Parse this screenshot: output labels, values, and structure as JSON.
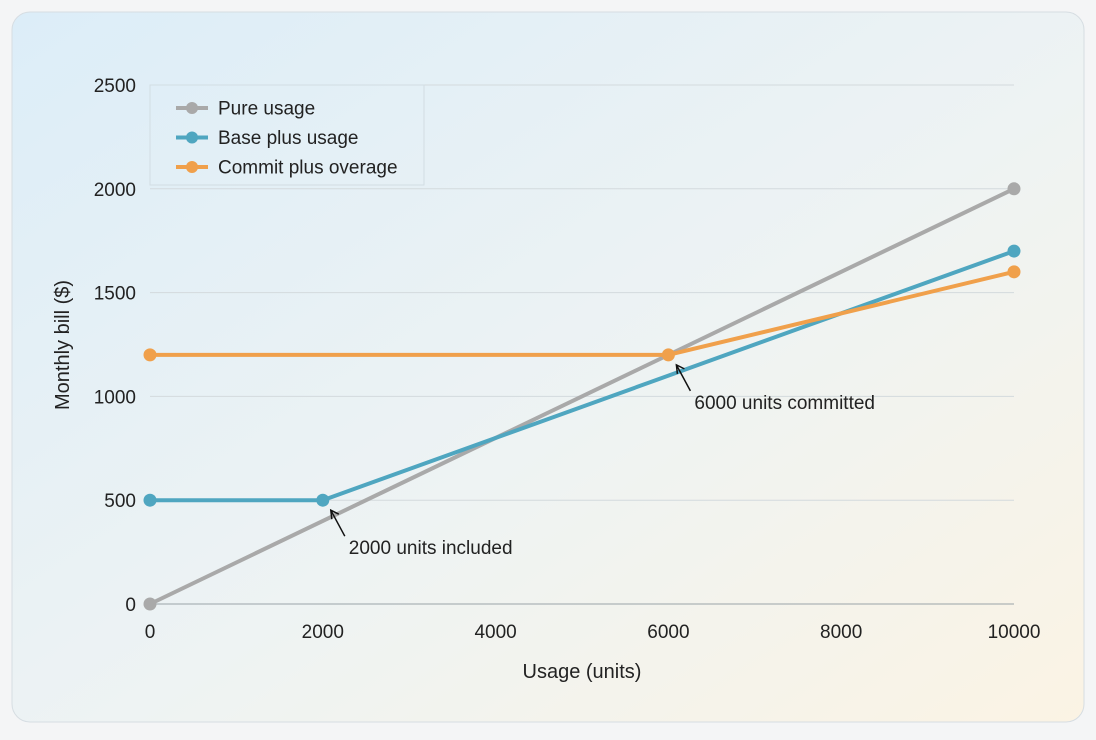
{
  "chart_data": {
    "type": "line",
    "title": "",
    "xlabel": "Usage (units)",
    "ylabel": "Monthly bill ($)",
    "xlim": [
      0,
      10000
    ],
    "ylim": [
      0,
      2500
    ],
    "xticks": [
      0,
      2000,
      4000,
      6000,
      8000,
      10000
    ],
    "yticks": [
      0,
      500,
      1000,
      1500,
      2000,
      2500
    ],
    "grid": "horizontal",
    "legend_position": "top-left",
    "series": [
      {
        "name": "Pure usage",
        "color": "#a9a9a9",
        "x": [
          0,
          10000
        ],
        "y": [
          0,
          2000
        ]
      },
      {
        "name": "Base plus usage",
        "color": "#4fa6c0",
        "x": [
          0,
          2000,
          10000
        ],
        "y": [
          500,
          500,
          1700
        ]
      },
      {
        "name": "Commit plus overage",
        "color": "#f0a04b",
        "x": [
          0,
          6000,
          10000
        ],
        "y": [
          1200,
          1200,
          1600
        ]
      }
    ],
    "annotations": [
      {
        "text": "2000 units included",
        "x": 2000,
        "y": 500
      },
      {
        "text": "6000 units committed",
        "x": 6000,
        "y": 1200
      }
    ]
  }
}
